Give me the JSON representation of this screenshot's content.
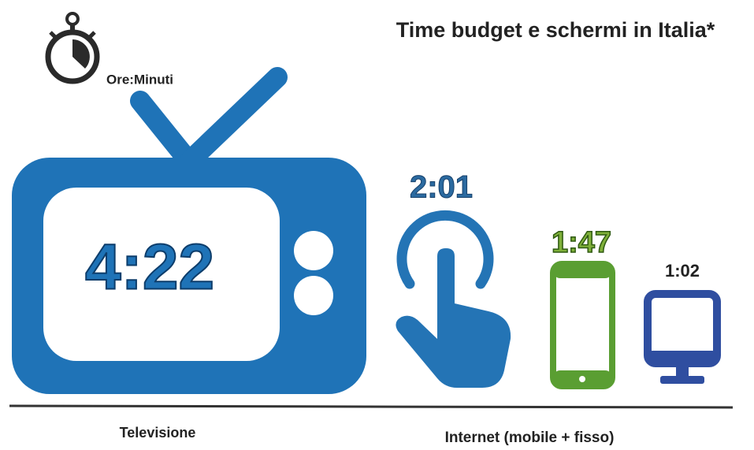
{
  "title": "Time budget e schermi in Italia*",
  "unit": "Ore:Minuti",
  "items": [
    {
      "label": "4:22"
    },
    {
      "label": "2:01"
    },
    {
      "label": "1:47"
    },
    {
      "label": "1:02"
    }
  ],
  "captions": [
    "Televisione",
    "Internet (mobile + fisso)"
  ]
}
